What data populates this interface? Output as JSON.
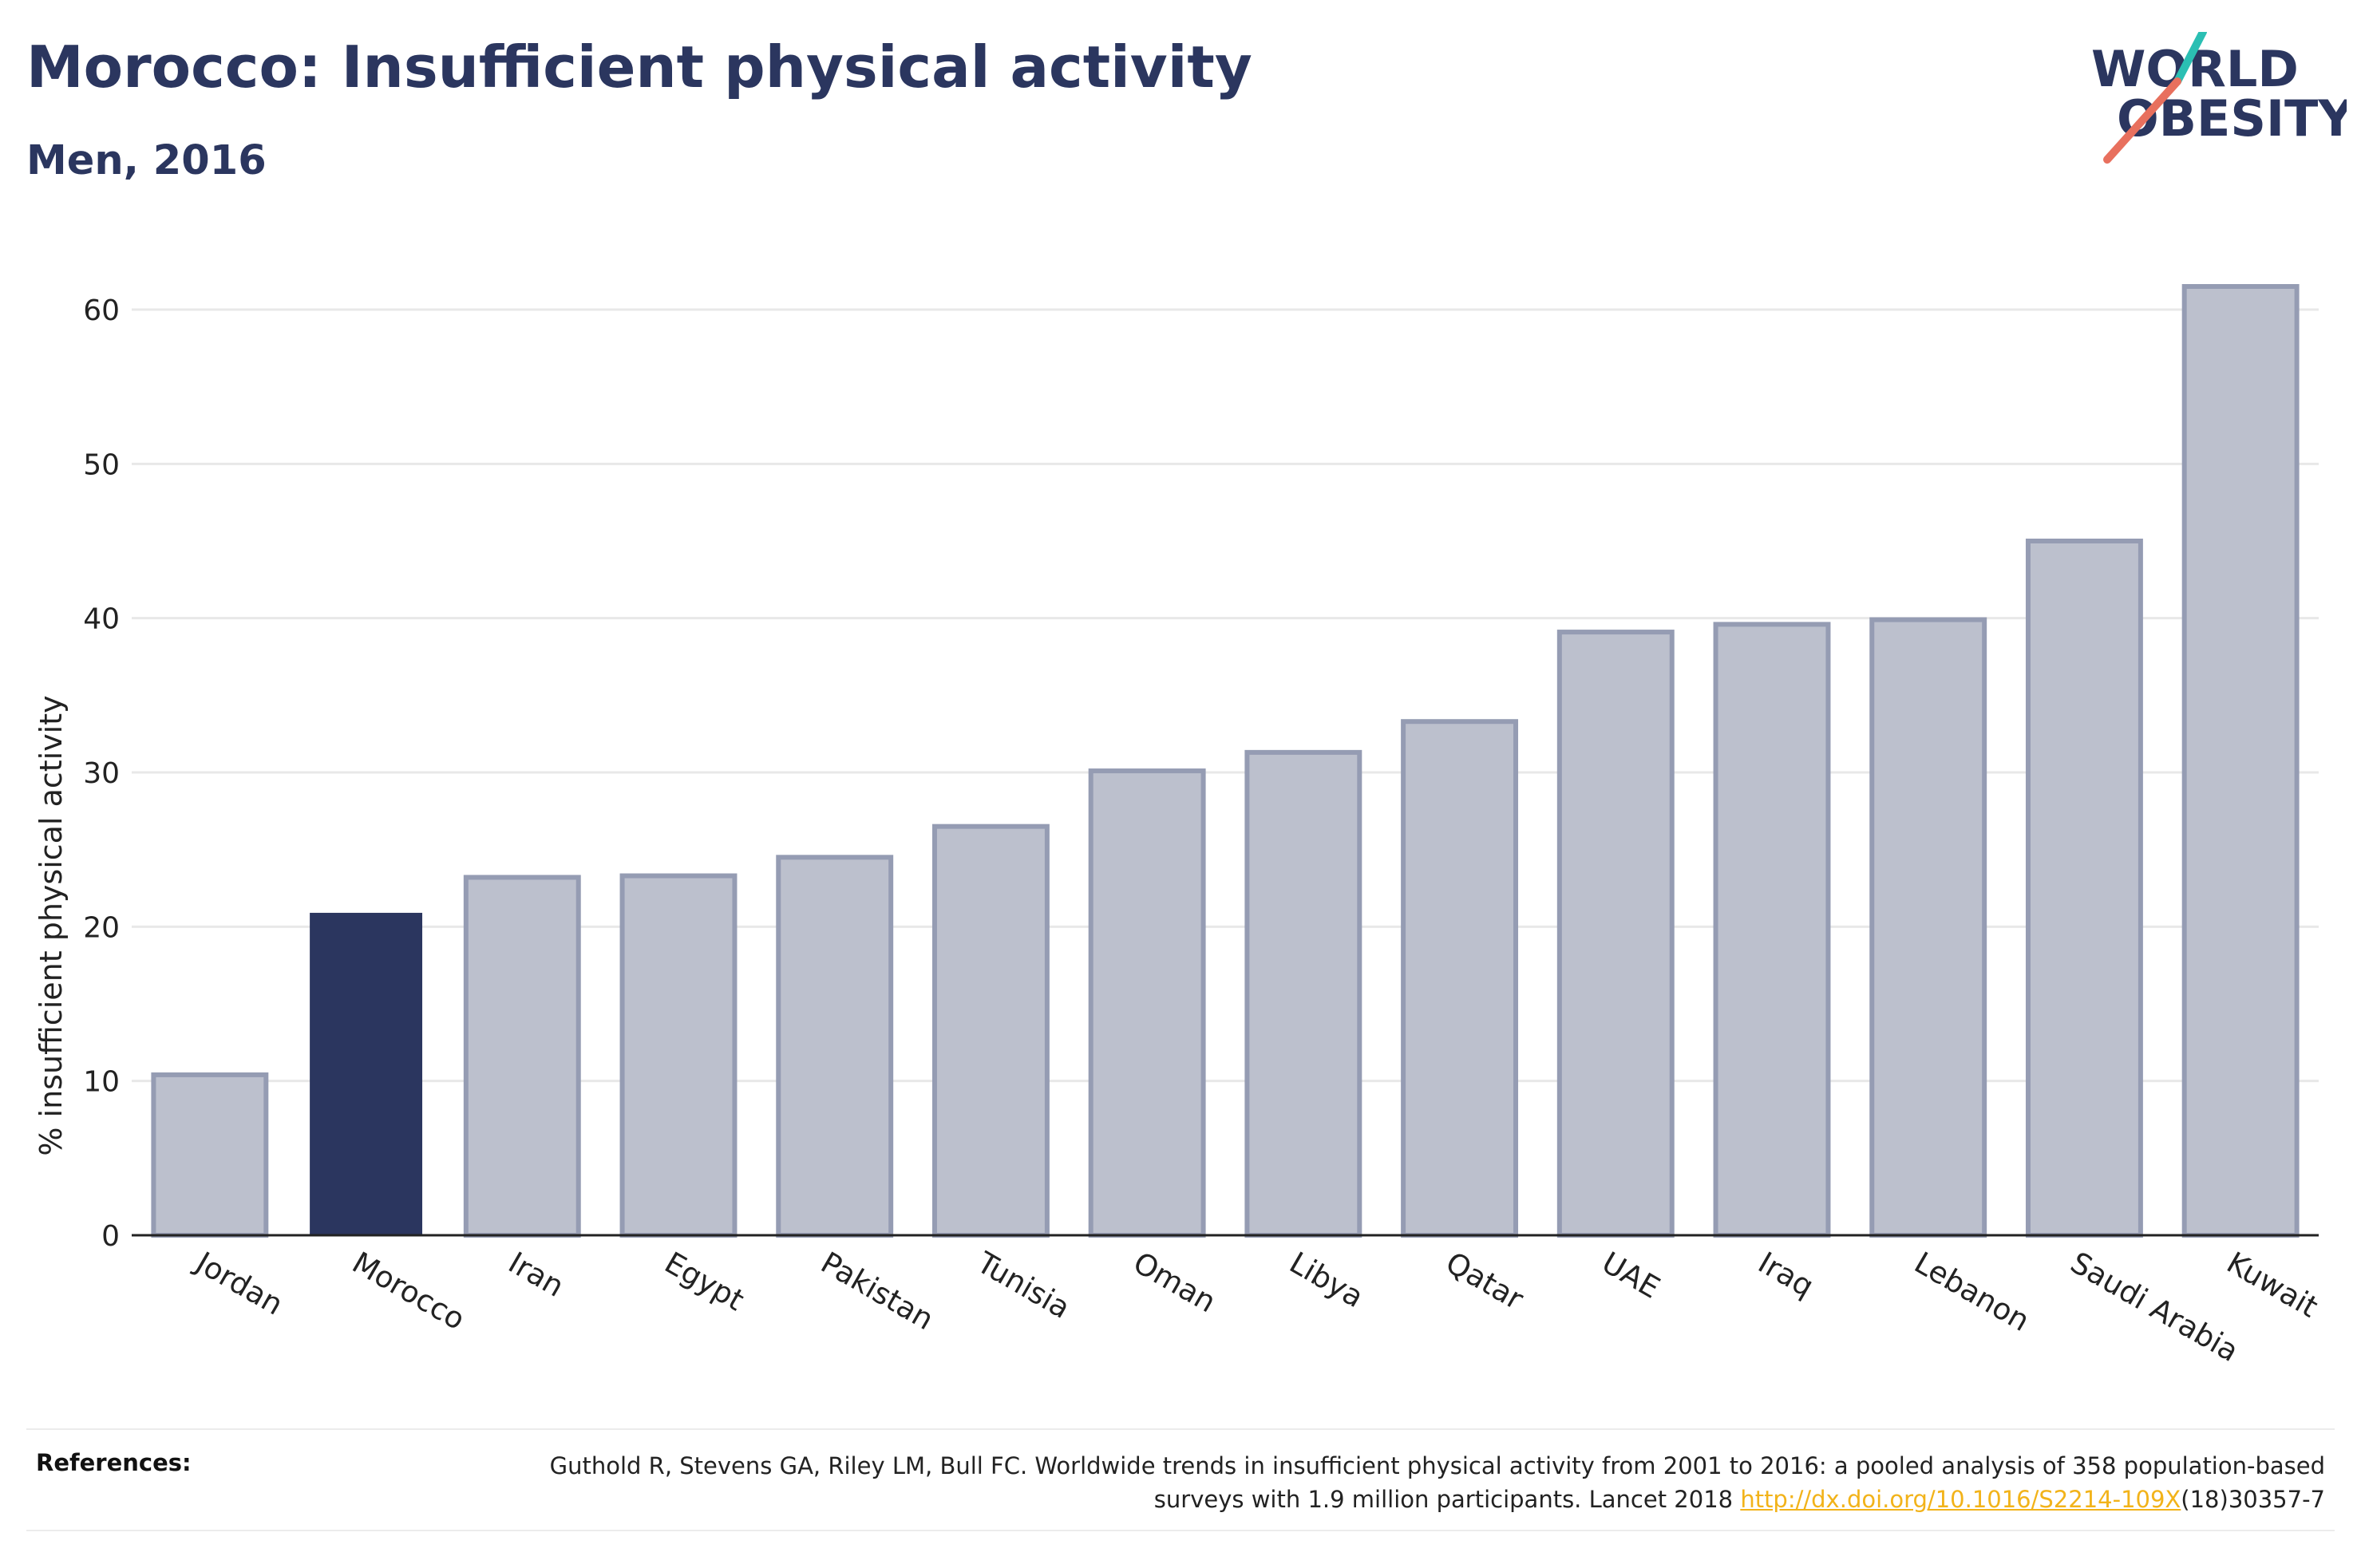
{
  "header": {
    "title": "Morocco: Insufficient physical activity",
    "subtitle": "Men, 2016"
  },
  "logo": {
    "line1": "WORLD",
    "line2": "OBESITY"
  },
  "chart_data": {
    "type": "bar",
    "ylabel": "% insufficient physical activity",
    "xlabel": "",
    "ylim": [
      0,
      63
    ],
    "yticks": [
      0,
      10,
      20,
      30,
      40,
      50,
      60
    ],
    "grid": true,
    "legend": "none",
    "highlight": "Morocco",
    "categories": [
      "Jordan",
      "Morocco",
      "Iran",
      "Egypt",
      "Pakistan",
      "Tunisia",
      "Oman",
      "Libya",
      "Qatar",
      "UAE",
      "Iraq",
      "Lebanon",
      "Saudi Arabia",
      "Kuwait"
    ],
    "values": [
      10.4,
      20.9,
      23.2,
      23.3,
      24.5,
      26.5,
      30.1,
      31.3,
      33.3,
      39.1,
      39.6,
      39.9,
      45.0,
      61.5
    ]
  },
  "colors": {
    "highlight": "#2b365f",
    "bar_fill": "#bcc0cd",
    "bar_stroke": "#959cb3",
    "grid": "#e8e8e8",
    "axis": "#222222",
    "link": "#f2b31a",
    "logo_teal": "#2bbfb3",
    "logo_coral": "#e8705e"
  },
  "references": {
    "label": "References:",
    "text_before": "Guthold R, Stevens GA, Riley LM, Bull FC. Worldwide trends in insufficient physical activity from 2001 to 2016: a pooled analysis of 358 population-based surveys with 1.9 million participants. Lancet 2018 ",
    "link": "http://dx.doi.org/10.1016/S2214-109X",
    "text_after": "(18)30357-7"
  }
}
